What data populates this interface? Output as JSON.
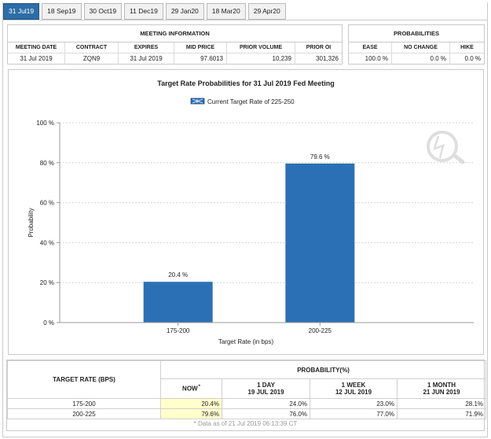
{
  "tabs": [
    {
      "label": "31 Jul19",
      "active": true
    },
    {
      "label": "18 Sep19",
      "active": false
    },
    {
      "label": "30 Oct19",
      "active": false
    },
    {
      "label": "11 Dec19",
      "active": false
    },
    {
      "label": "29 Jan20",
      "active": false
    },
    {
      "label": "18 Mar20",
      "active": false
    },
    {
      "label": "29 Apr20",
      "active": false
    }
  ],
  "meeting_info": {
    "title": "MEETING INFORMATION",
    "headers": [
      "MEETING DATE",
      "CONTRACT",
      "EXPIRES",
      "MID PRICE",
      "PRIOR VOLUME",
      "PRIOR OI"
    ],
    "row": [
      "31 Jul 2019",
      "ZQN9",
      "31 Jul 2019",
      "97.6013",
      "10,239",
      "301,326"
    ]
  },
  "probabilities": {
    "title": "PROBABILITIES",
    "headers": [
      "EASE",
      "NO CHANGE",
      "HIKE"
    ],
    "row": [
      "100.0 %",
      "0.0 %",
      "0.0 %"
    ]
  },
  "chart_data": {
    "type": "bar",
    "title": "Target Rate Probabilities for 31 Jul 2019 Fed Meeting",
    "legend": "Current Target Rate of 225-250",
    "legend_placement": "top-center",
    "xlabel": "Target Rate (in bps)",
    "ylabel": "Probability",
    "categories": [
      "175-200",
      "200-225"
    ],
    "values": [
      20.4,
      79.6
    ],
    "value_labels": [
      "20.4 %",
      "79.6 %"
    ],
    "ylim": [
      0,
      100
    ],
    "yticks": [
      0,
      20,
      40,
      60,
      80,
      100
    ],
    "ytick_labels": [
      "0 %",
      "20 %",
      "40 %",
      "60 %",
      "80 %",
      "100 %"
    ],
    "grid": true,
    "bar_color": "#2b70b5"
  },
  "target_table": {
    "col0_header": "TARGET RATE (BPS)",
    "prob_header": "PROBABILITY(%)",
    "sub_headers": [
      {
        "line1": "NOW",
        "line2": ""
      },
      {
        "line1": "1 DAY",
        "line2": "19 JUL 2019"
      },
      {
        "line1": "1 WEEK",
        "line2": "12 JUL 2019"
      },
      {
        "line1": "1 MONTH",
        "line2": "21 JUN 2019"
      }
    ],
    "now_marker": "*",
    "rows": [
      {
        "rate": "175-200",
        "values": [
          "20.4%",
          "24.0%",
          "23.0%",
          "28.1%"
        ]
      },
      {
        "rate": "200-225",
        "values": [
          "79.6%",
          "76.0%",
          "77.0%",
          "71.9%"
        ]
      }
    ],
    "footnote": "* Data as of 21 Jul 2019 06:13:39 CT"
  },
  "colors": {
    "accent": "#2d6da7",
    "highlight": "#ffffcc"
  }
}
